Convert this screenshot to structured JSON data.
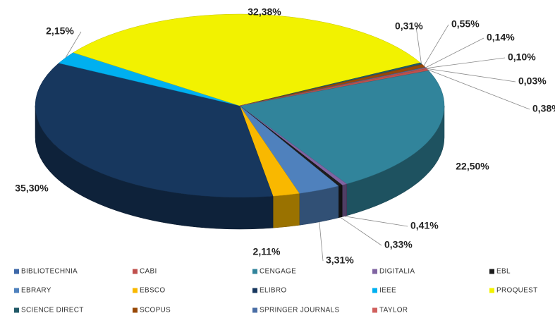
{
  "chart_data": {
    "type": "pie",
    "categories": [
      "BIBLIOTECHNIA",
      "CABI",
      "CENGAGE",
      "DIGITALIA",
      "EBL",
      "EBRARY",
      "EBSCO",
      "ELIBRO",
      "IEEE",
      "PROQUEST",
      "SCIENCE DIRECT",
      "SCOPUS",
      "SPRINGER JOURNALS",
      "TAYLOR"
    ],
    "values": [
      0.03,
      0.38,
      22.5,
      0.41,
      0.33,
      3.31,
      2.11,
      35.3,
      2.15,
      32.38,
      0.31,
      0.55,
      0.14,
      0.1
    ],
    "value_labels": [
      "0,03%",
      "0,38%",
      "22,50%",
      "0,41%",
      "0,33%",
      "3,31%",
      "2,11%",
      "35,30%",
      "2,15%",
      "32,38%",
      "0,31%",
      "0,55%",
      "0,14%",
      "0,10%"
    ],
    "colors": [
      "#3e68a8",
      "#c0504d",
      "#31849b",
      "#8064a2",
      "#1c1c1c",
      "#4f81bd",
      "#f9b800",
      "#17375e",
      "#00b0f0",
      "#f2f200",
      "#215967",
      "#984807",
      "#4a6ea5",
      "#d0605e"
    ],
    "legend": "bottom"
  }
}
